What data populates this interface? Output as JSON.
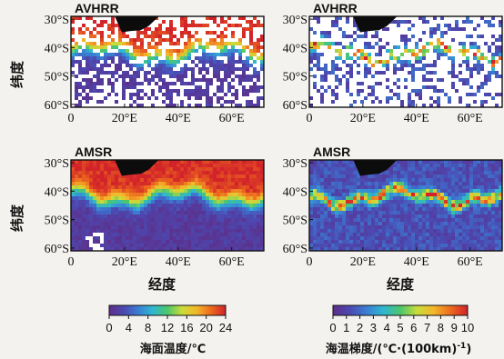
{
  "chart_data": [
    {
      "type": "heatmap",
      "title": "AVHRR",
      "variable": "sst",
      "ylabel": "纬度",
      "xlabel": "",
      "x_ticks": [
        "0",
        "20°E",
        "40°E",
        "60°E"
      ],
      "y_ticks": [
        "30°S",
        "40°S",
        "50°S",
        "60°S"
      ],
      "xlim": [
        0,
        72
      ],
      "ylim": [
        -61,
        -29
      ]
    },
    {
      "type": "heatmap",
      "title": "AVHRR",
      "variable": "gradient",
      "ylabel": "",
      "xlabel": "",
      "x_ticks": [
        "0",
        "20°E",
        "40°E",
        "60°E"
      ],
      "y_ticks": [
        "30°S",
        "40°S",
        "50°S",
        "60°S"
      ],
      "xlim": [
        0,
        72
      ],
      "ylim": [
        -61,
        -29
      ]
    },
    {
      "type": "heatmap",
      "title": "AMSR",
      "variable": "sst",
      "ylabel": "纬度",
      "xlabel": "经度",
      "x_ticks": [
        "0",
        "20°E",
        "40°E",
        "60°E"
      ],
      "y_ticks": [
        "30°S",
        "40°S",
        "50°S",
        "60°S"
      ],
      "xlim": [
        0,
        72
      ],
      "ylim": [
        -61,
        -29
      ]
    },
    {
      "type": "heatmap",
      "title": "AMSR",
      "variable": "gradient",
      "ylabel": "",
      "xlabel": "经度",
      "x_ticks": [
        "0",
        "20°E",
        "40°E",
        "60°E"
      ],
      "y_ticks": [
        "30°S",
        "40°S",
        "50°S",
        "60°S"
      ],
      "xlim": [
        0,
        72
      ],
      "ylim": [
        -61,
        -29
      ]
    }
  ],
  "colorbars": [
    {
      "ticks": [
        "0",
        "4",
        "8",
        "12",
        "16",
        "20",
        "24"
      ],
      "range": [
        0,
        24
      ],
      "label": "海面温度/℃"
    },
    {
      "ticks": [
        "0",
        "1",
        "2",
        "3",
        "4",
        "5",
        "6",
        "7",
        "8",
        "9",
        "10"
      ],
      "range": [
        0,
        10
      ],
      "label": "海温梯度/(℃·(100km)",
      "label_sup": "-1",
      "label_end": ")"
    }
  ],
  "colors": {
    "land": "#0c0c0c",
    "missing": "#ffffff",
    "scale": [
      "#5d2f8a",
      "#4c48b0",
      "#3a7fd4",
      "#2fb7d0",
      "#4cc66c",
      "#c9dc3a",
      "#f3b72a",
      "#ec6a1e",
      "#d2222a"
    ]
  }
}
